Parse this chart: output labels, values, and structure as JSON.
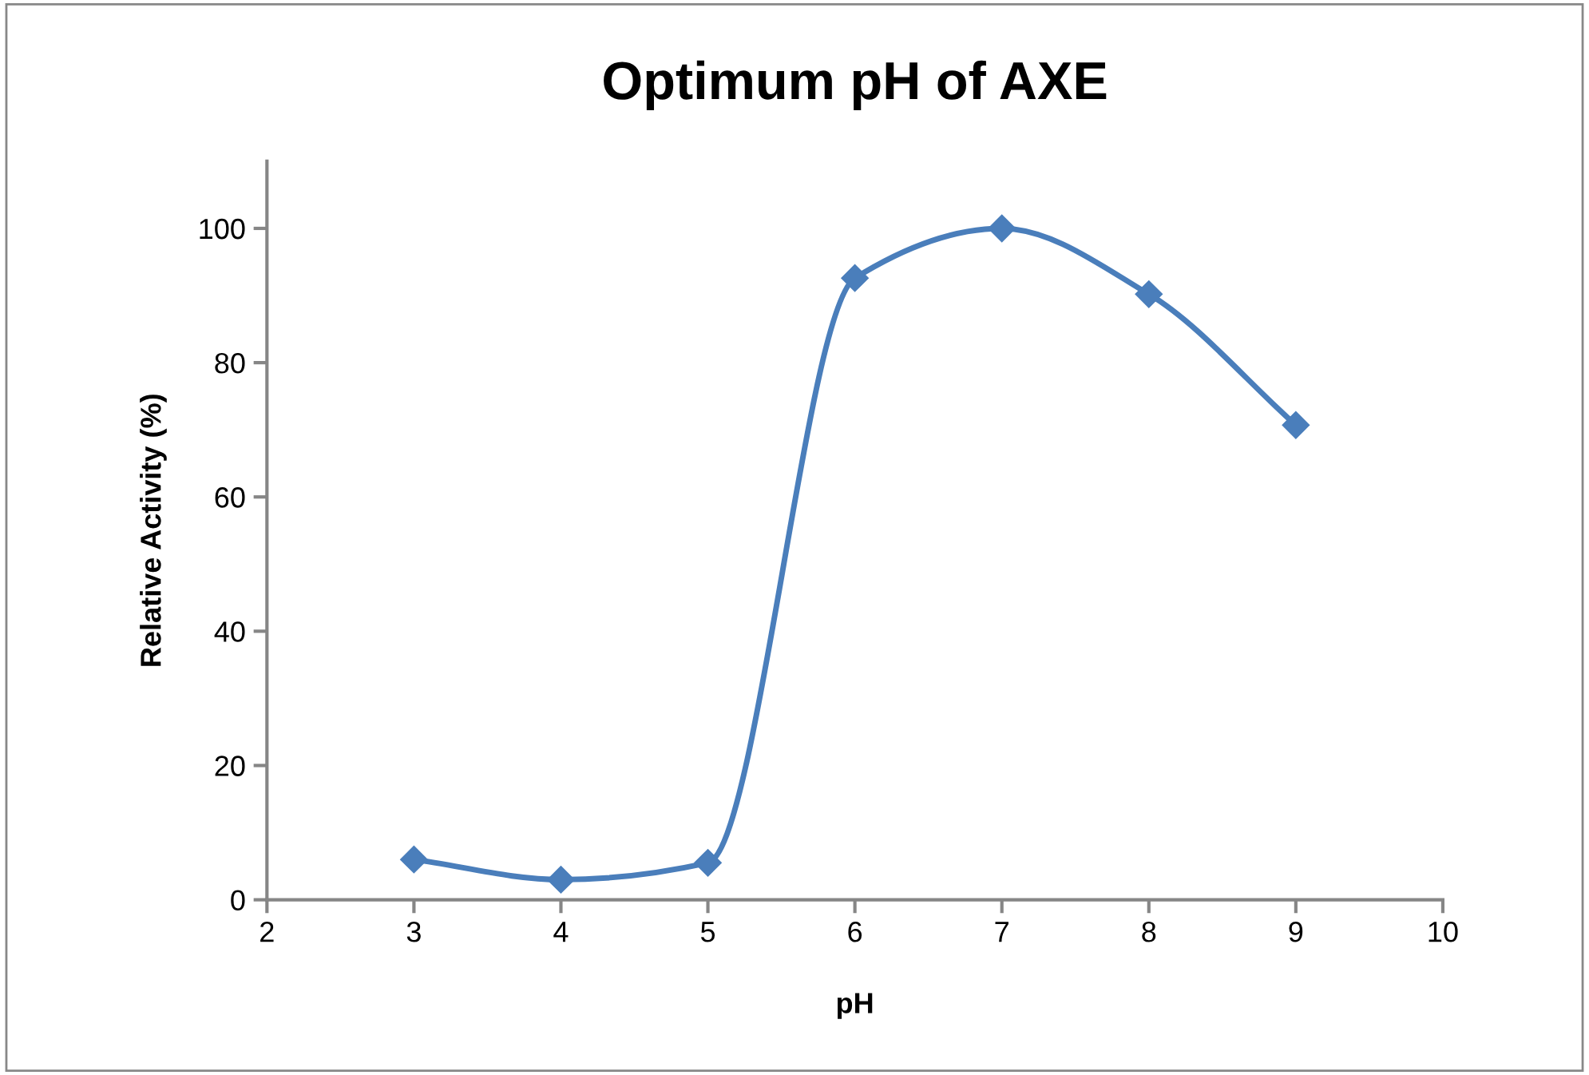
{
  "chart_data": {
    "type": "line",
    "title": "Optimum pH of AXE",
    "xlabel": "pH",
    "ylabel": "Relative Activity (%)",
    "x": [
      3,
      4,
      5,
      6,
      7,
      8,
      9
    ],
    "series": [
      {
        "color": "#4a7ebb",
        "values": [
          6,
          3,
          5.5,
          92.6,
          100,
          90.2,
          70.7
        ]
      }
    ],
    "xlim": [
      2,
      10
    ],
    "xticks": [
      2,
      3,
      4,
      5,
      6,
      7,
      8,
      9,
      10
    ],
    "ylim": [
      0,
      110
    ],
    "yticks": [
      0,
      20,
      40,
      60,
      80,
      100
    ],
    "grid": false,
    "legend": false,
    "marker": "diamond",
    "line_style": "solid"
  }
}
